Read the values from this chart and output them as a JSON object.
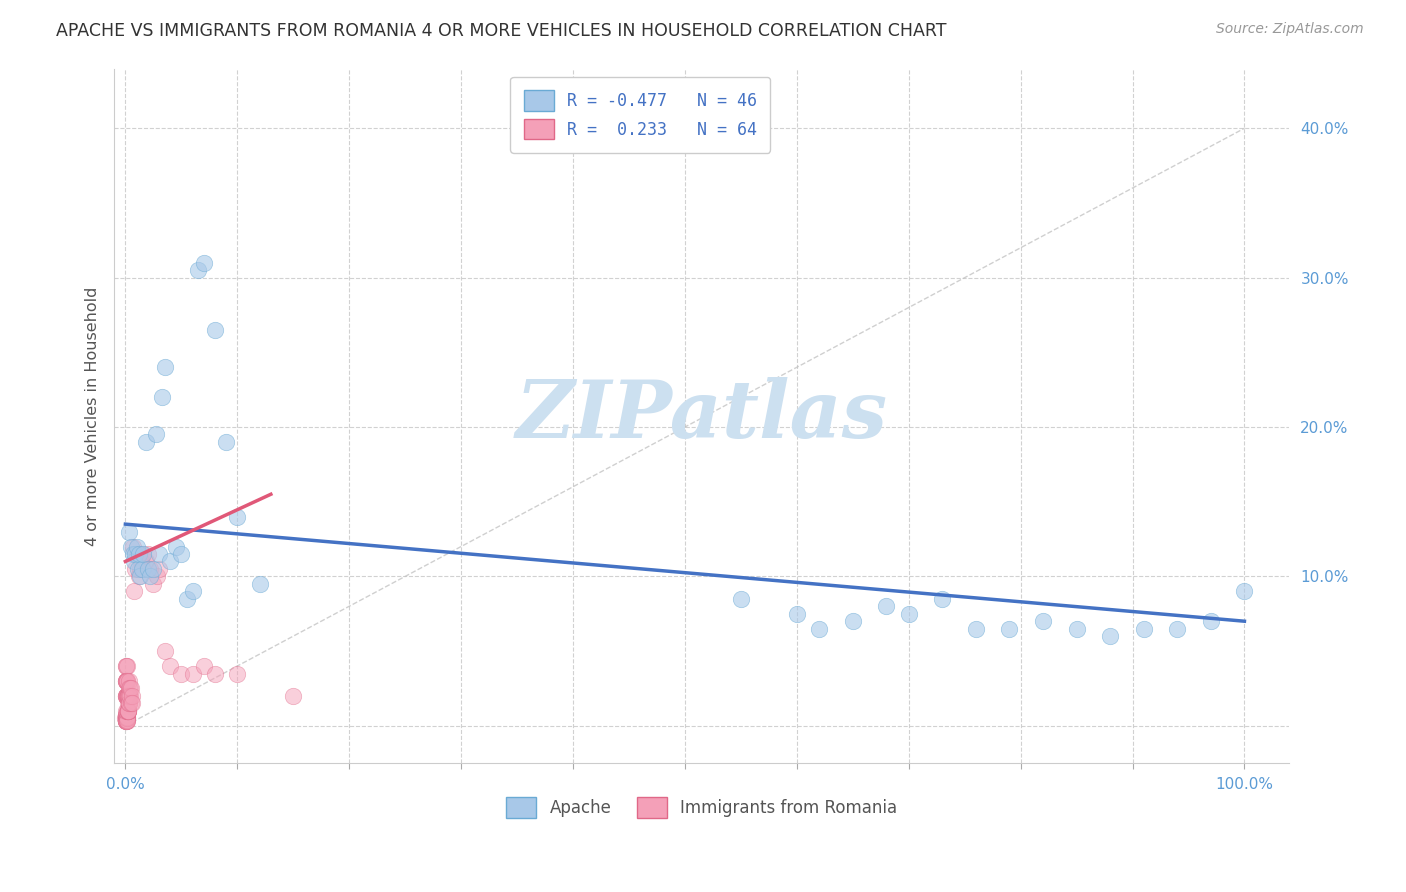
{
  "title": "APACHE VS IMMIGRANTS FROM ROMANIA 4 OR MORE VEHICLES IN HOUSEHOLD CORRELATION CHART",
  "source": "Source: ZipAtlas.com",
  "ylabel": "4 or more Vehicles in Household",
  "apache_color": "#a8c8e8",
  "apache_edge": "#6aaad4",
  "apache_trend_color": "#4472c4",
  "romania_color": "#f4a0b8",
  "romania_edge": "#e06888",
  "romania_trend_color": "#e05878",
  "legend_text_color": "#4472c4",
  "title_color": "#333333",
  "source_color": "#999999",
  "grid_color": "#cccccc",
  "background_color": "#ffffff",
  "watermark_text": "ZIPatlas",
  "watermark_color": "#cce0f0",
  "R_apache": -0.477,
  "N_apache": 46,
  "R_romania": 0.233,
  "N_romania": 64,
  "apache_x": [
    0.003,
    0.005,
    0.007,
    0.008,
    0.009,
    0.01,
    0.011,
    0.012,
    0.013,
    0.015,
    0.016,
    0.018,
    0.02,
    0.022,
    0.025,
    0.027,
    0.03,
    0.033,
    0.035,
    0.04,
    0.045,
    0.05,
    0.055,
    0.06,
    0.065,
    0.07,
    0.08,
    0.09,
    0.1,
    0.12,
    0.55,
    0.6,
    0.62,
    0.65,
    0.68,
    0.7,
    0.73,
    0.76,
    0.79,
    0.82,
    0.85,
    0.88,
    0.91,
    0.94,
    0.97,
    1.0
  ],
  "apache_y": [
    0.13,
    0.12,
    0.115,
    0.11,
    0.115,
    0.12,
    0.105,
    0.115,
    0.1,
    0.105,
    0.115,
    0.19,
    0.105,
    0.1,
    0.105,
    0.195,
    0.115,
    0.22,
    0.24,
    0.11,
    0.12,
    0.115,
    0.085,
    0.09,
    0.305,
    0.31,
    0.265,
    0.19,
    0.14,
    0.095,
    0.085,
    0.075,
    0.065,
    0.07,
    0.08,
    0.075,
    0.085,
    0.065,
    0.065,
    0.07,
    0.065,
    0.06,
    0.065,
    0.065,
    0.07,
    0.09
  ],
  "romania_x": [
    0.0002,
    0.0003,
    0.0004,
    0.0005,
    0.0006,
    0.0007,
    0.0008,
    0.0009,
    0.001,
    0.001,
    0.001,
    0.0012,
    0.0013,
    0.0014,
    0.0015,
    0.0016,
    0.0017,
    0.0018,
    0.0019,
    0.002,
    0.002,
    0.002,
    0.0022,
    0.0023,
    0.0024,
    0.0025,
    0.0026,
    0.0027,
    0.003,
    0.003,
    0.003,
    0.0032,
    0.0034,
    0.0035,
    0.004,
    0.004,
    0.005,
    0.005,
    0.006,
    0.006,
    0.007,
    0.008,
    0.009,
    0.01,
    0.011,
    0.012,
    0.013,
    0.014,
    0.015,
    0.016,
    0.018,
    0.02,
    0.022,
    0.025,
    0.028,
    0.03,
    0.035,
    0.04,
    0.05,
    0.06,
    0.07,
    0.08,
    0.1,
    0.15
  ],
  "romania_y": [
    0.04,
    0.03,
    0.03,
    0.02,
    0.03,
    0.02,
    0.02,
    0.01,
    0.04,
    0.03,
    0.02,
    0.04,
    0.03,
    0.02,
    0.03,
    0.02,
    0.02,
    0.01,
    0.02,
    0.02,
    0.01,
    0.01,
    0.02,
    0.015,
    0.01,
    0.01,
    0.02,
    0.01,
    0.03,
    0.02,
    0.015,
    0.025,
    0.02,
    0.015,
    0.025,
    0.02,
    0.025,
    0.015,
    0.02,
    0.015,
    0.12,
    0.09,
    0.105,
    0.115,
    0.115,
    0.1,
    0.105,
    0.11,
    0.115,
    0.105,
    0.11,
    0.115,
    0.105,
    0.095,
    0.1,
    0.105,
    0.05,
    0.04,
    0.035,
    0.035,
    0.04,
    0.035,
    0.035,
    0.02
  ],
  "romania_x_dense": [
    0.0001,
    0.0002,
    0.0002,
    0.0003,
    0.0003,
    0.0003,
    0.0004,
    0.0004,
    0.0005,
    0.0005,
    0.0006,
    0.0006,
    0.0007,
    0.0007,
    0.0008,
    0.0008,
    0.0009,
    0.0009,
    0.001,
    0.001,
    0.001,
    0.001,
    0.0011,
    0.0012,
    0.0013,
    0.0014,
    0.0015,
    0.0016,
    0.0017,
    0.0018
  ],
  "romania_y_dense": [
    0.005,
    0.008,
    0.004,
    0.006,
    0.003,
    0.007,
    0.005,
    0.004,
    0.006,
    0.003,
    0.005,
    0.004,
    0.006,
    0.003,
    0.005,
    0.004,
    0.006,
    0.003,
    0.007,
    0.005,
    0.004,
    0.003,
    0.005,
    0.004,
    0.006,
    0.005,
    0.004,
    0.006,
    0.005,
    0.003
  ],
  "legend1_label1": "R = -0.477   N = 46",
  "legend1_label2": "R =  0.233   N = 64",
  "legend2_label1": "Apache",
  "legend2_label2": "Immigrants from Romania",
  "xlim": [
    -0.01,
    1.04
  ],
  "ylim": [
    -0.025,
    0.44
  ],
  "xticks": [
    0.0,
    0.1,
    0.2,
    0.3,
    0.4,
    0.5,
    0.6,
    0.7,
    0.8,
    0.9,
    1.0
  ],
  "yticks": [
    0.0,
    0.1,
    0.2,
    0.3,
    0.4
  ],
  "apache_trend_x": [
    0.0,
    1.0
  ],
  "apache_trend_y": [
    0.135,
    0.07
  ],
  "romania_trend_x": [
    0.0,
    0.13
  ],
  "romania_trend_y": [
    0.11,
    0.155
  ]
}
